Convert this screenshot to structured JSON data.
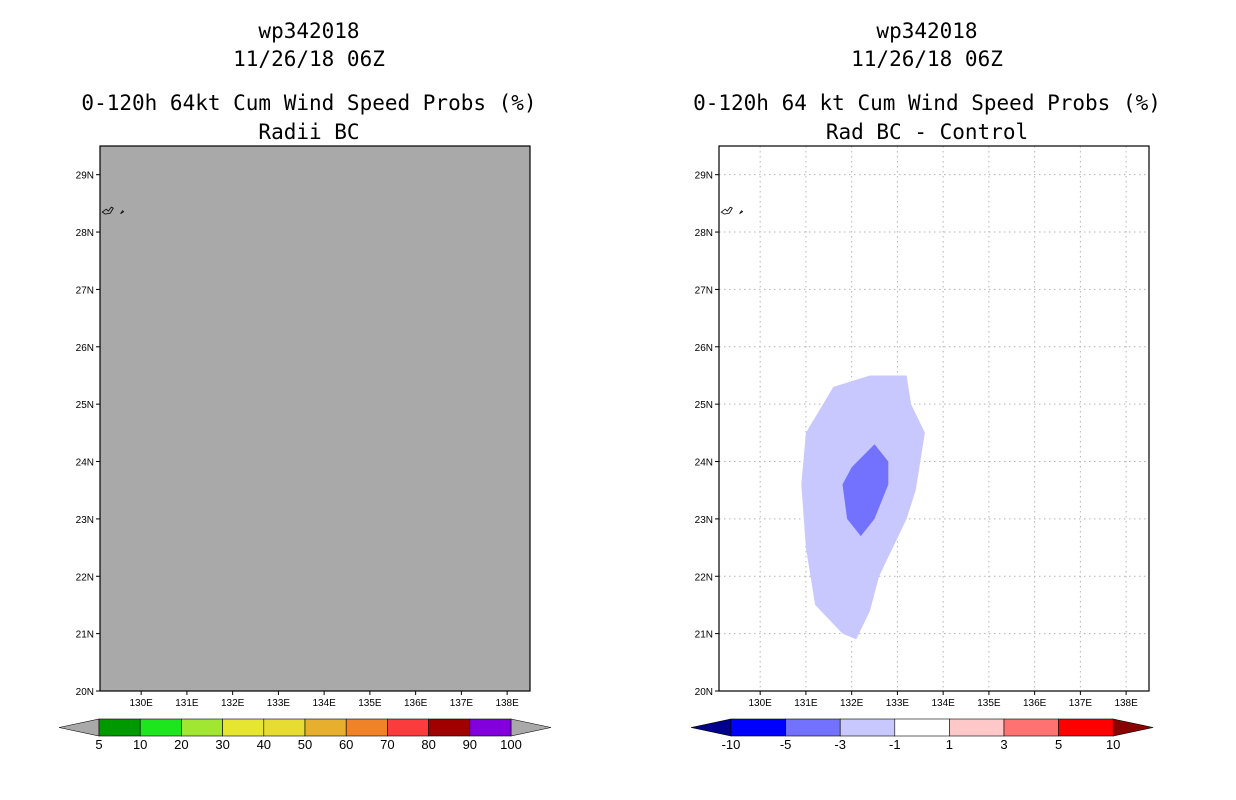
{
  "left": {
    "title1": "wp342018",
    "title2": "11/26/18 06Z",
    "title3": "0-120h 64kt Cum Wind Speed Probs (%)",
    "title4": "Radii BC",
    "fill_color": "#a9a9a9",
    "colorbar": {
      "labels": [
        "5",
        "10",
        "20",
        "30",
        "40",
        "50",
        "60",
        "70",
        "80",
        "90",
        "100"
      ],
      "colors": [
        "#009a00",
        "#1ee61e",
        "#a0e632",
        "#e6e632",
        "#e6dc32",
        "#e6af2d",
        "#f08228",
        "#fa3c3c",
        "#a00000",
        "#8200dc"
      ],
      "end_colors": [
        "#a9a9a9",
        "#a9a9a9"
      ]
    }
  },
  "right": {
    "title1": "wp342018",
    "title2": "11/26/18 06Z",
    "title3": "0-120h 64 kt Cum Wind Speed Probs (%)",
    "title4": "Rad BC - Control",
    "contours": [
      {
        "level": "-3 to -1",
        "color": "#c8c8ff",
        "points": [
          [
            131.0,
            24.5
          ],
          [
            131.6,
            25.3
          ],
          [
            132.4,
            25.5
          ],
          [
            133.2,
            25.5
          ],
          [
            133.3,
            25.0
          ],
          [
            133.6,
            24.5
          ],
          [
            133.4,
            23.5
          ],
          [
            133.2,
            23.0
          ],
          [
            132.6,
            22.0
          ],
          [
            132.4,
            21.4
          ],
          [
            132.1,
            20.9
          ],
          [
            131.8,
            21.0
          ],
          [
            131.2,
            21.5
          ],
          [
            131.0,
            22.5
          ],
          [
            130.9,
            23.6
          ]
        ]
      },
      {
        "level": "-5 to -3",
        "color": "#7272ff",
        "points": [
          [
            132.5,
            24.3
          ],
          [
            132.8,
            24.0
          ],
          [
            132.8,
            23.6
          ],
          [
            132.5,
            23.0
          ],
          [
            132.2,
            22.7
          ],
          [
            131.9,
            23.0
          ],
          [
            131.8,
            23.6
          ],
          [
            132.0,
            23.9
          ]
        ]
      }
    ],
    "colorbar": {
      "labels": [
        "-10",
        "-5",
        "-3",
        "-1",
        "1",
        "3",
        "5",
        "10"
      ],
      "colors": [
        "#0000ff",
        "#7272ff",
        "#c8c8ff",
        "#ffffff",
        "#ffc8c8",
        "#ff7272",
        "#ff0000"
      ],
      "end_colors": [
        "#00008b",
        "#8b0000"
      ]
    }
  },
  "axes": {
    "lon_labels": [
      "130E",
      "131E",
      "132E",
      "133E",
      "134E",
      "135E",
      "136E",
      "137E",
      "138E"
    ],
    "lon_values": [
      130,
      131,
      132,
      133,
      134,
      135,
      136,
      137,
      138
    ],
    "lat_labels": [
      "20N",
      "21N",
      "22N",
      "23N",
      "24N",
      "25N",
      "26N",
      "27N",
      "28N",
      "29N"
    ],
    "lat_values": [
      20,
      21,
      22,
      23,
      24,
      25,
      26,
      27,
      28,
      29
    ],
    "lon_range": [
      129.1,
      138.5
    ],
    "lat_range": [
      20.0,
      29.5
    ]
  }
}
